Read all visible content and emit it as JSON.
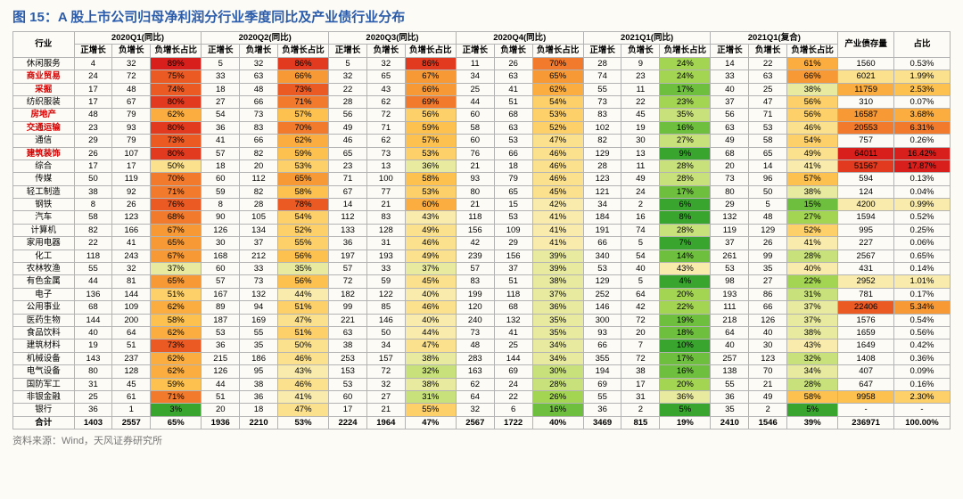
{
  "title": "图 15：A 股上市公司归母净利润分行业季度同比及产业债行业分布",
  "source_label": "资料来源：Wind，天风证券研究所",
  "group_headers": [
    "2020Q1(同比)",
    "2020Q2(同比)",
    "2020Q3(同比)",
    "2020Q4(同比)",
    "2021Q1(同比)",
    "2021Q1(复合)"
  ],
  "sub_headers": [
    "正增长",
    "负增长",
    "负增长占比"
  ],
  "industry_col": "行业",
  "bond_col": "产业债存量",
  "share_col": "占比",
  "heat_colors": {
    "g5": "#3aa52e",
    "g4": "#6fbf3e",
    "g3": "#a3d552",
    "g2": "#c8e17a",
    "g1": "#e8eaa0",
    "y1": "#f9ebac",
    "y2": "#fbe18e",
    "y3": "#fdd06a",
    "o1": "#fdc14f",
    "o2": "#fbae3f",
    "o3": "#f79a36",
    "r1": "#f27a2c",
    "r2": "#eb5a23",
    "r3": "#e23a1e",
    "r4": "#d81f1c"
  },
  "rows": [
    {
      "name": "休闲服务",
      "red": false,
      "q": [
        [
          4,
          32,
          "89%",
          "r4"
        ],
        [
          5,
          32,
          "86%",
          "r3"
        ],
        [
          5,
          32,
          "86%",
          "r3"
        ],
        [
          11,
          26,
          "70%",
          "r1"
        ],
        [
          28,
          9,
          "24%",
          "g3"
        ],
        [
          14,
          22,
          "61%",
          "o2"
        ]
      ],
      "bond": "1560",
      "bond_c": null,
      "share": "0.53%",
      "share_c": null
    },
    {
      "name": "商业贸易",
      "red": true,
      "q": [
        [
          24,
          72,
          "75%",
          "r2"
        ],
        [
          33,
          63,
          "66%",
          "o3"
        ],
        [
          32,
          65,
          "67%",
          "o3"
        ],
        [
          34,
          63,
          "65%",
          "o3"
        ],
        [
          74,
          23,
          "24%",
          "g3"
        ],
        [
          33,
          63,
          "66%",
          "o3"
        ]
      ],
      "bond": "6021",
      "bond_c": "y2",
      "share": "1.99%",
      "share_c": "y2"
    },
    {
      "name": "采掘",
      "red": true,
      "q": [
        [
          17,
          48,
          "74%",
          "r2"
        ],
        [
          18,
          48,
          "73%",
          "r2"
        ],
        [
          22,
          43,
          "66%",
          "o3"
        ],
        [
          25,
          41,
          "62%",
          "o2"
        ],
        [
          55,
          11,
          "17%",
          "g4"
        ],
        [
          40,
          25,
          "38%",
          "g1"
        ]
      ],
      "bond": "11759",
      "bond_c": "o2",
      "share": "2.53%",
      "share_c": "o1"
    },
    {
      "name": "纺织服装",
      "red": false,
      "q": [
        [
          17,
          67,
          "80%",
          "r3"
        ],
        [
          27,
          66,
          "71%",
          "r1"
        ],
        [
          28,
          62,
          "69%",
          "r1"
        ],
        [
          44,
          51,
          "54%",
          "y3"
        ],
        [
          73,
          22,
          "23%",
          "g3"
        ],
        [
          37,
          47,
          "56%",
          "y3"
        ]
      ],
      "bond": "310",
      "bond_c": null,
      "share": "0.07%",
      "share_c": null
    },
    {
      "name": "房地产",
      "red": true,
      "q": [
        [
          48,
          79,
          "62%",
          "o2"
        ],
        [
          54,
          73,
          "57%",
          "o1"
        ],
        [
          56,
          72,
          "56%",
          "y3"
        ],
        [
          60,
          68,
          "53%",
          "y3"
        ],
        [
          83,
          45,
          "35%",
          "g2"
        ],
        [
          56,
          71,
          "56%",
          "y3"
        ]
      ],
      "bond": "16587",
      "bond_c": "o3",
      "share": "3.68%",
      "share_c": "o2"
    },
    {
      "name": "交通运输",
      "red": true,
      "q": [
        [
          23,
          93,
          "80%",
          "r3"
        ],
        [
          36,
          83,
          "70%",
          "r1"
        ],
        [
          49,
          71,
          "59%",
          "o1"
        ],
        [
          58,
          63,
          "52%",
          "y3"
        ],
        [
          102,
          19,
          "16%",
          "g4"
        ],
        [
          63,
          53,
          "46%",
          "y2"
        ]
      ],
      "bond": "20553",
      "bond_c": "r1",
      "share": "6.31%",
      "share_c": "r1"
    },
    {
      "name": "通信",
      "red": false,
      "q": [
        [
          29,
          79,
          "73%",
          "r2"
        ],
        [
          41,
          66,
          "62%",
          "o2"
        ],
        [
          46,
          62,
          "57%",
          "o1"
        ],
        [
          60,
          53,
          "47%",
          "y2"
        ],
        [
          82,
          30,
          "27%",
          "g2"
        ],
        [
          49,
          58,
          "54%",
          "y3"
        ]
      ],
      "bond": "757",
      "bond_c": null,
      "share": "0.26%",
      "share_c": null
    },
    {
      "name": "建筑装饰",
      "red": true,
      "q": [
        [
          26,
          107,
          "80%",
          "r3"
        ],
        [
          57,
          82,
          "59%",
          "o1"
        ],
        [
          65,
          73,
          "53%",
          "y3"
        ],
        [
          76,
          66,
          "46%",
          "y2"
        ],
        [
          129,
          13,
          "9%",
          "g5"
        ],
        [
          68,
          65,
          "49%",
          "y2"
        ]
      ],
      "bond": "64011",
      "bond_c": "r4",
      "share": "16.42%",
      "share_c": "r4"
    },
    {
      "name": "综合",
      "red": false,
      "q": [
        [
          17,
          17,
          "50%",
          "y2"
        ],
        [
          18,
          20,
          "53%",
          "y3"
        ],
        [
          23,
          13,
          "36%",
          "g1"
        ],
        [
          21,
          18,
          "46%",
          "y2"
        ],
        [
          28,
          11,
          "28%",
          "g2"
        ],
        [
          20,
          14,
          "41%",
          "y1"
        ]
      ],
      "bond": "51567",
      "bond_c": "r3",
      "share": "17.87%",
      "share_c": "r4"
    },
    {
      "name": "传媒",
      "red": false,
      "q": [
        [
          50,
          119,
          "70%",
          "r1"
        ],
        [
          60,
          112,
          "65%",
          "o3"
        ],
        [
          71,
          100,
          "58%",
          "o1"
        ],
        [
          93,
          79,
          "46%",
          "y2"
        ],
        [
          123,
          49,
          "28%",
          "g2"
        ],
        [
          73,
          96,
          "57%",
          "o1"
        ]
      ],
      "bond": "594",
      "bond_c": null,
      "share": "0.13%",
      "share_c": null
    },
    {
      "name": "轻工制造",
      "red": false,
      "q": [
        [
          38,
          92,
          "71%",
          "r1"
        ],
        [
          59,
          82,
          "58%",
          "o1"
        ],
        [
          67,
          77,
          "53%",
          "y3"
        ],
        [
          80,
          65,
          "45%",
          "y2"
        ],
        [
          121,
          24,
          "17%",
          "g4"
        ],
        [
          80,
          50,
          "38%",
          "g1"
        ]
      ],
      "bond": "124",
      "bond_c": null,
      "share": "0.04%",
      "share_c": null
    },
    {
      "name": "钢铁",
      "red": false,
      "q": [
        [
          8,
          26,
          "76%",
          "r2"
        ],
        [
          8,
          28,
          "78%",
          "r2"
        ],
        [
          14,
          21,
          "60%",
          "o2"
        ],
        [
          21,
          15,
          "42%",
          "y1"
        ],
        [
          34,
          2,
          "6%",
          "g5"
        ],
        [
          29,
          5,
          "15%",
          "g4"
        ]
      ],
      "bond": "4200",
      "bond_c": "y1",
      "share": "0.99%",
      "share_c": "y1"
    },
    {
      "name": "汽车",
      "red": false,
      "q": [
        [
          58,
          123,
          "68%",
          "r1"
        ],
        [
          90,
          105,
          "54%",
          "y3"
        ],
        [
          112,
          83,
          "43%",
          "y1"
        ],
        [
          118,
          53,
          "41%",
          "y1"
        ],
        [
          184,
          16,
          "8%",
          "g5"
        ],
        [
          132,
          48,
          "27%",
          "g3"
        ]
      ],
      "bond": "1594",
      "bond_c": null,
      "share": "0.52%",
      "share_c": null
    },
    {
      "name": "计算机",
      "red": false,
      "q": [
        [
          82,
          166,
          "67%",
          "o3"
        ],
        [
          126,
          134,
          "52%",
          "y3"
        ],
        [
          133,
          128,
          "49%",
          "y2"
        ],
        [
          156,
          109,
          "41%",
          "y1"
        ],
        [
          191,
          74,
          "28%",
          "g2"
        ],
        [
          119,
          129,
          "52%",
          "y3"
        ]
      ],
      "bond": "995",
      "bond_c": null,
      "share": "0.25%",
      "share_c": null
    },
    {
      "name": "家用电器",
      "red": false,
      "q": [
        [
          22,
          41,
          "65%",
          "o3"
        ],
        [
          30,
          37,
          "55%",
          "y3"
        ],
        [
          36,
          31,
          "46%",
          "y2"
        ],
        [
          42,
          29,
          "41%",
          "y1"
        ],
        [
          66,
          5,
          "7%",
          "g5"
        ],
        [
          37,
          26,
          "41%",
          "y1"
        ]
      ],
      "bond": "227",
      "bond_c": null,
      "share": "0.06%",
      "share_c": null
    },
    {
      "name": "化工",
      "red": false,
      "q": [
        [
          118,
          243,
          "67%",
          "o3"
        ],
        [
          168,
          212,
          "56%",
          "o1"
        ],
        [
          197,
          193,
          "49%",
          "y2"
        ],
        [
          239,
          156,
          "39%",
          "g1"
        ],
        [
          340,
          54,
          "14%",
          "g4"
        ],
        [
          261,
          99,
          "28%",
          "g2"
        ]
      ],
      "bond": "2567",
      "bond_c": null,
      "share": "0.65%",
      "share_c": null
    },
    {
      "name": "农林牧渔",
      "red": false,
      "q": [
        [
          55,
          32,
          "37%",
          "g1"
        ],
        [
          60,
          33,
          "35%",
          "g1"
        ],
        [
          57,
          33,
          "37%",
          "g1"
        ],
        [
          57,
          37,
          "39%",
          "g1"
        ],
        [
          53,
          40,
          "43%",
          "y1"
        ],
        [
          53,
          35,
          "40%",
          "y1"
        ]
      ],
      "bond": "431",
      "bond_c": null,
      "share": "0.14%",
      "share_c": null
    },
    {
      "name": "有色金属",
      "red": false,
      "q": [
        [
          44,
          81,
          "65%",
          "o3"
        ],
        [
          57,
          73,
          "56%",
          "o1"
        ],
        [
          72,
          59,
          "45%",
          "y2"
        ],
        [
          83,
          51,
          "38%",
          "g1"
        ],
        [
          129,
          5,
          "4%",
          "g5"
        ],
        [
          98,
          27,
          "22%",
          "g3"
        ]
      ],
      "bond": "2952",
      "bond_c": "y1",
      "share": "1.01%",
      "share_c": "y1"
    },
    {
      "name": "电子",
      "red": false,
      "q": [
        [
          136,
          144,
          "51%",
          "y3"
        ],
        [
          167,
          132,
          "44%",
          "y1"
        ],
        [
          182,
          122,
          "40%",
          "y1"
        ],
        [
          199,
          118,
          "37%",
          "g1"
        ],
        [
          252,
          64,
          "20%",
          "g3"
        ],
        [
          193,
          86,
          "31%",
          "g2"
        ]
      ],
      "bond": "781",
      "bond_c": null,
      "share": "0.17%",
      "share_c": null
    },
    {
      "name": "公用事业",
      "red": false,
      "q": [
        [
          68,
          109,
          "62%",
          "o2"
        ],
        [
          89,
          94,
          "51%",
          "y3"
        ],
        [
          99,
          85,
          "46%",
          "y2"
        ],
        [
          120,
          68,
          "36%",
          "g1"
        ],
        [
          146,
          42,
          "22%",
          "g3"
        ],
        [
          111,
          66,
          "37%",
          "g1"
        ]
      ],
      "bond": "22406",
      "bond_c": "r2",
      "share": "5.34%",
      "share_c": "o3"
    },
    {
      "name": "医药生物",
      "red": false,
      "q": [
        [
          144,
          200,
          "58%",
          "o1"
        ],
        [
          187,
          169,
          "47%",
          "y2"
        ],
        [
          221,
          146,
          "40%",
          "y1"
        ],
        [
          240,
          132,
          "35%",
          "g1"
        ],
        [
          300,
          72,
          "19%",
          "g4"
        ],
        [
          218,
          126,
          "37%",
          "g1"
        ]
      ],
      "bond": "1576",
      "bond_c": null,
      "share": "0.54%",
      "share_c": null
    },
    {
      "name": "食品饮料",
      "red": false,
      "q": [
        [
          40,
          64,
          "62%",
          "o2"
        ],
        [
          53,
          55,
          "51%",
          "y3"
        ],
        [
          63,
          50,
          "44%",
          "y1"
        ],
        [
          73,
          41,
          "35%",
          "g1"
        ],
        [
          93,
          20,
          "18%",
          "g4"
        ],
        [
          64,
          40,
          "38%",
          "g1"
        ]
      ],
      "bond": "1659",
      "bond_c": null,
      "share": "0.56%",
      "share_c": null
    },
    {
      "name": "建筑材料",
      "red": false,
      "q": [
        [
          19,
          51,
          "73%",
          "r2"
        ],
        [
          36,
          35,
          "50%",
          "y2"
        ],
        [
          38,
          34,
          "47%",
          "y2"
        ],
        [
          48,
          25,
          "34%",
          "g1"
        ],
        [
          66,
          7,
          "10%",
          "g5"
        ],
        [
          40,
          30,
          "43%",
          "y1"
        ]
      ],
      "bond": "1649",
      "bond_c": null,
      "share": "0.42%",
      "share_c": null
    },
    {
      "name": "机械设备",
      "red": false,
      "q": [
        [
          143,
          237,
          "62%",
          "o2"
        ],
        [
          215,
          186,
          "46%",
          "y2"
        ],
        [
          253,
          157,
          "38%",
          "g1"
        ],
        [
          283,
          144,
          "34%",
          "g1"
        ],
        [
          355,
          72,
          "17%",
          "g4"
        ],
        [
          257,
          123,
          "32%",
          "g2"
        ]
      ],
      "bond": "1408",
      "bond_c": null,
      "share": "0.36%",
      "share_c": null
    },
    {
      "name": "电气设备",
      "red": false,
      "q": [
        [
          80,
          128,
          "62%",
          "o2"
        ],
        [
          126,
          95,
          "43%",
          "y1"
        ],
        [
          153,
          72,
          "32%",
          "g2"
        ],
        [
          163,
          69,
          "30%",
          "g2"
        ],
        [
          194,
          38,
          "16%",
          "g4"
        ],
        [
          138,
          70,
          "34%",
          "g1"
        ]
      ],
      "bond": "407",
      "bond_c": null,
      "share": "0.09%",
      "share_c": null
    },
    {
      "name": "国防军工",
      "red": false,
      "q": [
        [
          31,
          45,
          "59%",
          "o1"
        ],
        [
          44,
          38,
          "46%",
          "y2"
        ],
        [
          53,
          32,
          "38%",
          "g1"
        ],
        [
          62,
          24,
          "28%",
          "g2"
        ],
        [
          69,
          17,
          "20%",
          "g3"
        ],
        [
          55,
          21,
          "28%",
          "g2"
        ]
      ],
      "bond": "647",
      "bond_c": null,
      "share": "0.16%",
      "share_c": null
    },
    {
      "name": "非银金融",
      "red": false,
      "q": [
        [
          25,
          61,
          "71%",
          "r1"
        ],
        [
          51,
          36,
          "41%",
          "y1"
        ],
        [
          60,
          27,
          "31%",
          "g2"
        ],
        [
          64,
          22,
          "26%",
          "g3"
        ],
        [
          55,
          31,
          "36%",
          "g1"
        ],
        [
          36,
          49,
          "58%",
          "o1"
        ]
      ],
      "bond": "9958",
      "bond_c": "o1",
      "share": "2.30%",
      "share_c": "y3"
    },
    {
      "name": "银行",
      "red": false,
      "q": [
        [
          36,
          1,
          "3%",
          "g5"
        ],
        [
          20,
          18,
          "47%",
          "y2"
        ],
        [
          17,
          21,
          "55%",
          "y3"
        ],
        [
          32,
          6,
          "16%",
          "g4"
        ],
        [
          36,
          2,
          "5%",
          "g5"
        ],
        [
          35,
          2,
          "5%",
          "g5"
        ]
      ],
      "bond": "-",
      "bond_c": null,
      "share": "-",
      "share_c": null
    }
  ],
  "total_row": {
    "name": "合计",
    "q": [
      [
        1403,
        2557,
        "65%"
      ],
      [
        1936,
        2210,
        "53%"
      ],
      [
        2224,
        1964,
        "47%"
      ],
      [
        2567,
        1722,
        "40%"
      ],
      [
        3469,
        815,
        "19%"
      ],
      [
        2410,
        1546,
        "39%"
      ]
    ],
    "bond": "236971",
    "share": "100.00%"
  }
}
